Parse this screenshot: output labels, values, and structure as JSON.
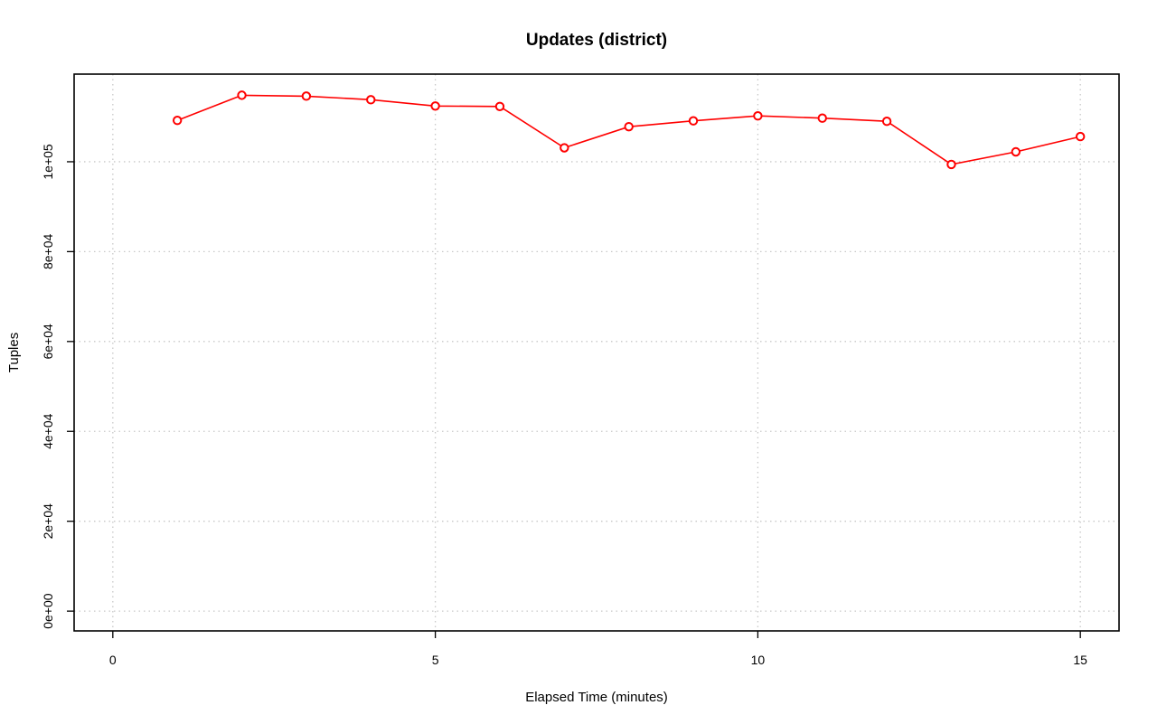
{
  "chart_data": {
    "type": "line",
    "title": "Updates (district)",
    "xlabel": "Elapsed Time (minutes)",
    "ylabel": "Tuples",
    "xlim": [
      -0.6,
      15.6
    ],
    "ylim": [
      -4400,
      119500
    ],
    "x_ticks": [
      0,
      5,
      10,
      15
    ],
    "x_tick_labels": [
      "0",
      "5",
      "10",
      "15"
    ],
    "y_ticks": [
      0,
      20000,
      40000,
      60000,
      80000,
      100000
    ],
    "y_tick_labels": [
      "0e+00",
      "2e+04",
      "4e+04",
      "6e+04",
      "8e+04",
      "1e+05"
    ],
    "grid": true,
    "series": [
      {
        "color": "#ff0000",
        "x": [
          1,
          2,
          3,
          4,
          5,
          6,
          7,
          8,
          9,
          10,
          11,
          12,
          13,
          14,
          15
        ],
        "y": [
          109200,
          114800,
          114600,
          113800,
          112400,
          112300,
          103100,
          107800,
          109100,
          110200,
          109700,
          109000,
          99400,
          102200,
          105600
        ]
      }
    ]
  }
}
